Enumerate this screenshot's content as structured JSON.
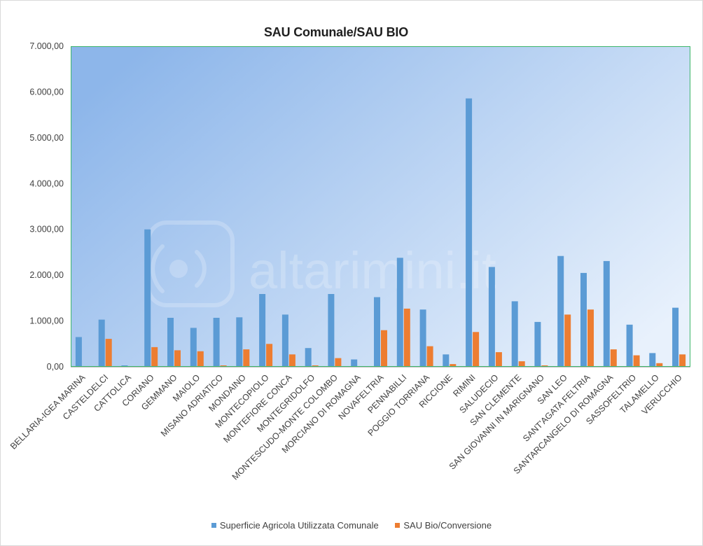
{
  "chart_data": {
    "type": "bar",
    "title": "SAU Comunale/SAU BIO",
    "xlabel": "",
    "ylabel": "",
    "ylim": [
      0,
      7000
    ],
    "yticks": [
      0,
      1000,
      2000,
      3000,
      4000,
      5000,
      6000,
      7000
    ],
    "ytick_labels": [
      "0,00",
      "1.000,00",
      "2.000,00",
      "3.000,00",
      "4.000,00",
      "5.000,00",
      "6.000,00",
      "7.000,00"
    ],
    "grid": false,
    "legend_position": "bottom",
    "categories": [
      "BELLARIA-IGEA MARINA",
      "CASTELDELCI",
      "CATTOLICA",
      "CORIANO",
      "GEMMANO",
      "MAIOLO",
      "MISANO ADRIATICO",
      "MONDAINO",
      "MONTECOPIOLO",
      "MONTEFIORE CONCA",
      "MONTEGRIDOLFO",
      "MONTESCUDO-MONTE COLOMBO",
      "MORCIANO DI ROMAGNA",
      "NOVAFELTRIA",
      "PENNABILLI",
      "POGGIO TORRIANA",
      "RICCIONE",
      "RIMINI",
      "SALUDECIO",
      "SAN CLEMENTE",
      "SAN GIOVANNI IN MARIGNANO",
      "SAN LEO",
      "SANT'AGATA FELTRIA",
      "SANTARCANGELO DI ROMAGNA",
      "SASSOFELTRIO",
      "TALAMELLO",
      "VERUCCHIO"
    ],
    "series": [
      {
        "name": "Superficie Agricola Utilizzata Comunale",
        "color": "#5b9bd5",
        "values": [
          650,
          1030,
          30,
          3000,
          1070,
          850,
          1070,
          1080,
          1590,
          1140,
          410,
          1590,
          160,
          1520,
          2380,
          1250,
          270,
          5860,
          2180,
          1430,
          980,
          2420,
          2050,
          2310,
          920,
          300,
          1290
        ]
      },
      {
        "name": "SAU Bio/Conversione",
        "color": "#ed7d31",
        "values": [
          10,
          610,
          10,
          430,
          360,
          340,
          30,
          380,
          500,
          270,
          30,
          190,
          10,
          800,
          1270,
          450,
          60,
          760,
          320,
          120,
          30,
          1140,
          1250,
          380,
          250,
          80,
          270
        ]
      }
    ],
    "watermark": "altarimini.it"
  },
  "colors": {
    "plot_bg_start": "#8db6ea",
    "plot_bg_end": "#e8f1fc",
    "plot_border": "#3fb66b",
    "axis_text": "#404040"
  }
}
